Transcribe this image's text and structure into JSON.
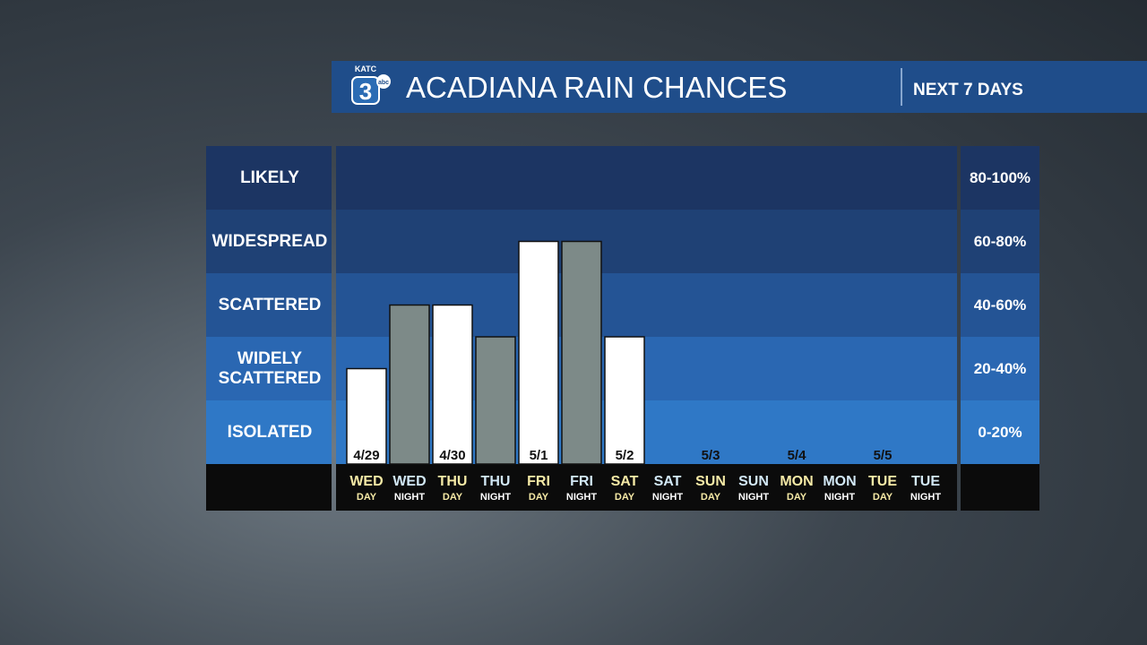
{
  "header": {
    "logo": {
      "station": "KATC",
      "number": "3",
      "network": "abc"
    },
    "title": "ACADIANA RAIN CHANCES",
    "subtitle": "NEXT 7 DAYS"
  },
  "chart_data": {
    "type": "bar",
    "categories": [
      "WED",
      "WED",
      "THU",
      "THU",
      "FRI",
      "FRI",
      "SAT",
      "SAT",
      "SUN",
      "SUN",
      "MON",
      "MON",
      "TUE",
      "TUE"
    ],
    "periods": [
      "DAY",
      "NIGHT",
      "DAY",
      "NIGHT",
      "DAY",
      "NIGHT",
      "DAY",
      "NIGHT",
      "DAY",
      "NIGHT",
      "DAY",
      "NIGHT",
      "DAY",
      "NIGHT"
    ],
    "dates": [
      "4/29",
      null,
      "4/30",
      null,
      "5/1",
      null,
      "5/2",
      null,
      "5/3",
      null,
      "5/4",
      null,
      "5/5",
      null
    ],
    "values": [
      30,
      50,
      50,
      40,
      70,
      70,
      40,
      0,
      0,
      0,
      0,
      0,
      0,
      0
    ],
    "colors": [
      "#ffffff",
      "#7d8a88",
      "#ffffff",
      "#7d8a88",
      "#ffffff",
      "#7d8a88",
      "#ffffff",
      "#7d8a88",
      "#ffffff",
      "#7d8a88",
      "#ffffff",
      "#7d8a88",
      "#ffffff",
      "#7d8a88"
    ],
    "ylim": [
      0,
      100
    ],
    "bands": [
      {
        "label": "ISOLATED",
        "range": "0-20%",
        "color": "#2f78c6"
      },
      {
        "label": "WIDELY SCATTERED",
        "range": "20-40%",
        "color": "#2a67b2"
      },
      {
        "label": "SCATTERED",
        "range": "40-60%",
        "color": "#245495"
      },
      {
        "label": "WIDESPREAD",
        "range": "60-80%",
        "color": "#1f4175"
      },
      {
        "label": "LIKELY",
        "range": "80-100%",
        "color": "#1c3563"
      }
    ]
  }
}
